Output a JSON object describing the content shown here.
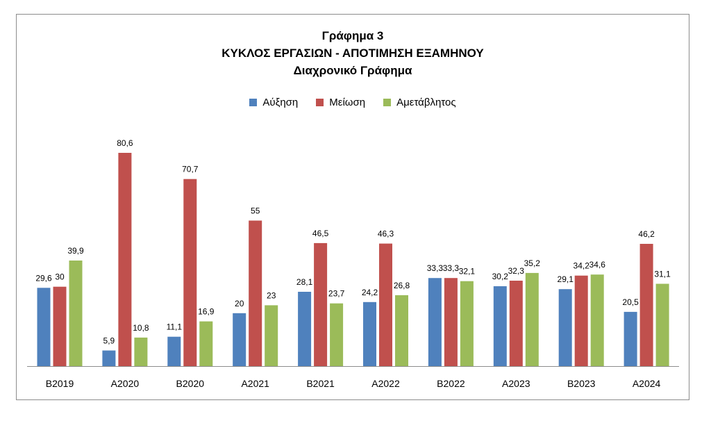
{
  "chart_data": {
    "type": "bar",
    "title": "Γράφημα 3",
    "subtitle": "ΚΥΚΛΟΣ ΕΡΓΑΣΙΩΝ - ΑΠΟΤΙΜΗΣΗ ΕΞΑΜΗΝΟΥ",
    "subtitle2": "Διαχρονικό Γράφημα",
    "xlabel": "",
    "ylabel": "",
    "ylim": [
      0,
      80.6
    ],
    "grid": false,
    "legend_position": "top",
    "categories": [
      "B2019",
      "A2020",
      "B2020",
      "A2021",
      "B2021",
      "A2022",
      "B2022",
      "A2023",
      "B2023",
      "A2024"
    ],
    "series": [
      {
        "name": "Αύξηση",
        "color": "#4f81bd",
        "values": [
          29.6,
          5.9,
          11.1,
          20,
          28.1,
          24.2,
          33.3,
          30.2,
          29.1,
          20.5
        ],
        "labels": [
          "29,6",
          "5,9",
          "11,1",
          "20",
          "28,1",
          "24,2",
          "33,3",
          "30,2",
          "29,1",
          "20,5"
        ]
      },
      {
        "name": "Μείωση",
        "color": "#c0504d",
        "values": [
          30,
          80.6,
          70.7,
          55,
          46.5,
          46.3,
          33.3,
          32.3,
          34.2,
          46.2
        ],
        "labels": [
          "30",
          "80,6",
          "70,7",
          "55",
          "46,5",
          "46,3",
          "33,3",
          "32,3",
          "34,2",
          "46,2"
        ]
      },
      {
        "name": "Αμετάβλητος",
        "color": "#9bbb59",
        "values": [
          39.9,
          10.8,
          16.9,
          23,
          23.7,
          26.8,
          32.1,
          35.2,
          34.6,
          31.1
        ],
        "labels": [
          "39,9",
          "10,8",
          "16,9",
          "23",
          "23,7",
          "26,8",
          "32,1",
          "35,2",
          "34,6",
          "31,1"
        ]
      }
    ]
  }
}
